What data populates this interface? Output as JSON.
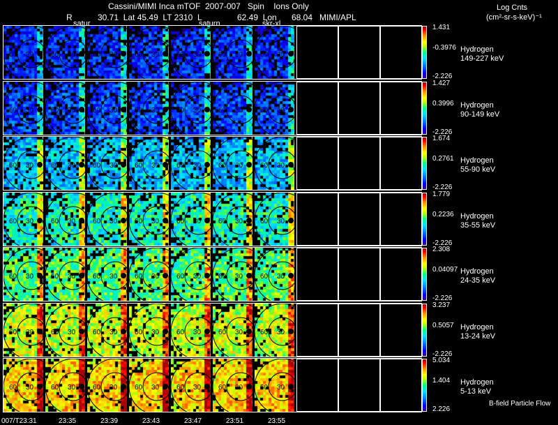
{
  "header": {
    "title": "Cassini/MIMI Inca mTOF  2007-007   Spin    Ions Only",
    "line2_r": "R",
    "line2_rest": "30.71  Lat 45.49  LT 2310  L",
    "line2_lon": "62.49  Lon",
    "line2_end": "68.04   MIMI/APL",
    "units_title": "Log Cnts",
    "units": "(cm²-sr-s-keV)⁻¹",
    "label_satur_1": "satur",
    "label_satur_2": "saturn",
    "label_skr": "skr-xl"
  },
  "rows": [
    {
      "species": "Hydrogen",
      "energy": "149-227 keV",
      "max": "1.431",
      "mid": "-0.3976",
      "min": "-2.226",
      "level": 0.18
    },
    {
      "species": "Hydrogen",
      "energy": "90-149 keV",
      "max": "1.427",
      "mid": "0.3996",
      "min": "-2.226",
      "level": 0.22
    },
    {
      "species": "Hydrogen",
      "energy": "55-90 keV",
      "max": "1.674",
      "mid": "0.2761",
      "min": "-2.226",
      "level": 0.38
    },
    {
      "species": "Hydrogen",
      "energy": "35-55 keV",
      "max": "1.779",
      "mid": "0.2236",
      "min": "-2.226",
      "level": 0.48
    },
    {
      "species": "Hydrogen",
      "energy": "24-35 keV",
      "max": "2.308",
      "mid": "0.04097",
      "min": "-2.226",
      "level": 0.55
    },
    {
      "species": "Hydrogen",
      "energy": "13-24 keV",
      "max": "3.237",
      "mid": "0.5057",
      "min": "-2.226",
      "level": 0.66
    },
    {
      "species": "Hydrogen",
      "energy": "5-13 keV",
      "max": "5.034",
      "mid": "1.404",
      "min": "2.226",
      "level": 0.75
    }
  ],
  "ring_labels": {
    "inner": "30",
    "outer": "60"
  },
  "time_ticks": [
    "007/T23:31",
    "23:35",
    "23:39",
    "23:43",
    "23:47",
    "23:51",
    "23:55"
  ],
  "footer_note": "B-field Particle Flow",
  "colors": {
    "background": "#000000",
    "frame": "#ffffff"
  }
}
